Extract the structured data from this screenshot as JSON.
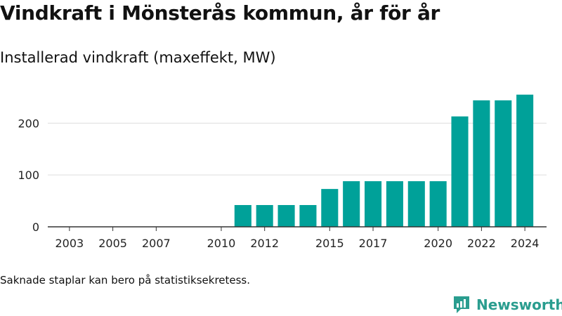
{
  "title": "Vindkraft i Mönsterås kommun, år för år",
  "subtitle": "Installerad vindkraft (maxeffekt, MW)",
  "footnote": "Saknade staplar kan bero på statistiksekretess.",
  "brand": {
    "name": "Newsworthy",
    "icon": "newsworthy-logo-icon"
  },
  "colors": {
    "bar": "#00a199",
    "grid": "#dddddd",
    "axis": "#333333",
    "brand": "#2a9d8f"
  },
  "chart_data": {
    "type": "bar",
    "x": [
      2011,
      2012,
      2013,
      2014,
      2015,
      2016,
      2017,
      2018,
      2019,
      2020,
      2021,
      2022,
      2023,
      2024
    ],
    "values": [
      42,
      42,
      42,
      42,
      73,
      88,
      88,
      88,
      88,
      88,
      213,
      244,
      244,
      255
    ],
    "xlim": [
      2002,
      2025
    ],
    "xticks": [
      2003,
      2005,
      2007,
      2010,
      2012,
      2015,
      2017,
      2020,
      2022,
      2024
    ],
    "ylim": [
      0,
      275
    ],
    "yticks": [
      0,
      100,
      200
    ],
    "grid": true,
    "xlabel": "",
    "ylabel": ""
  }
}
